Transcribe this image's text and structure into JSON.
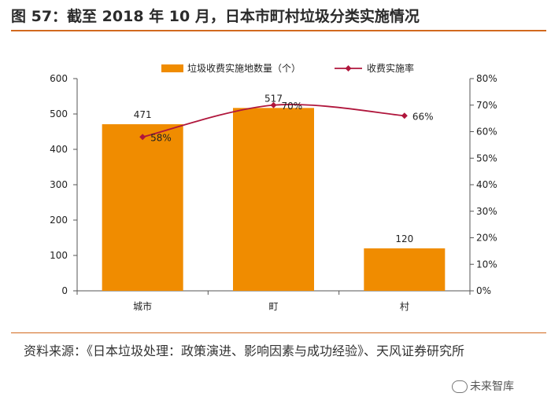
{
  "figure": {
    "title": "图 57：截至 2018 年 10 月，日本市町村垃圾分类实施情况",
    "source": "资料来源：《日本垃圾处理：政策演进、影响因素与成功经验》、天风证券研究所",
    "watermark": "未来智库",
    "accent_color": "#d2691e"
  },
  "chart_data": {
    "type": "bar",
    "categories": [
      "城市",
      "町",
      "村"
    ],
    "series": [
      {
        "name": "垃圾收费实施地数量（个）",
        "type": "bar",
        "axis": "left",
        "values": [
          471,
          517,
          120
        ],
        "labels": [
          "471",
          "517",
          "120"
        ],
        "color": "#f08c00"
      },
      {
        "name": "收费实施率",
        "type": "line",
        "axis": "right",
        "values": [
          0.58,
          0.7,
          0.66
        ],
        "labels": [
          "58%",
          "70%",
          "66%"
        ],
        "color": "#b0163c"
      }
    ],
    "y_left": {
      "ylim": [
        0,
        600
      ],
      "ticks": [
        "0",
        "100",
        "200",
        "300",
        "400",
        "500",
        "600"
      ]
    },
    "y_right": {
      "ylim": [
        0,
        0.8
      ],
      "ticks": [
        "0%",
        "10%",
        "20%",
        "30%",
        "40%",
        "50%",
        "60%",
        "70%",
        "80%"
      ]
    },
    "legend_position": "top",
    "grid": false
  }
}
